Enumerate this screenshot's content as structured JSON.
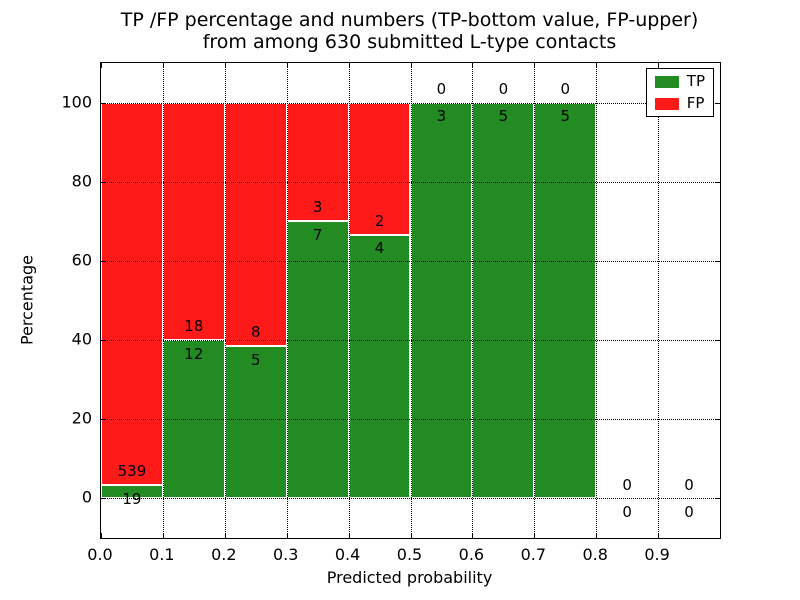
{
  "chart_data": {
    "type": "bar",
    "stacked": true,
    "percent_scale": true,
    "title_lines": [
      "TP /FP percentage and numbers (TP-bottom value, FP-upper)",
      "from among 630 submitted L-type contacts"
    ],
    "total_contacts": 630,
    "xlabel": "Predicted probability",
    "ylabel": "Percentage",
    "bin_edges": [
      0.0,
      0.1,
      0.2,
      0.3,
      0.4,
      0.5,
      0.6,
      0.7,
      0.8,
      0.9,
      1.0
    ],
    "series": [
      {
        "name": "TP",
        "color": "#228b22",
        "counts": [
          19,
          12,
          5,
          7,
          4,
          3,
          5,
          5,
          0,
          0
        ]
      },
      {
        "name": "FP",
        "color": "#ff1a1a",
        "counts": [
          539,
          18,
          8,
          3,
          2,
          0,
          0,
          0,
          0,
          0
        ]
      }
    ],
    "tp_percent": [
      3.4,
      40.0,
      38.5,
      70.0,
      66.7,
      100.0,
      100.0,
      100.0,
      0.0,
      0.0
    ],
    "xticks": [
      "0.0",
      "0.1",
      "0.2",
      "0.3",
      "0.4",
      "0.5",
      "0.6",
      "0.7",
      "0.8",
      "0.9"
    ],
    "yticks": [
      "0",
      "20",
      "40",
      "60",
      "80",
      "100"
    ],
    "xlim": [
      0.0,
      1.0
    ],
    "ylim": [
      -10,
      110
    ],
    "grid": "dotted",
    "legend": {
      "position": "upper right",
      "entries": [
        {
          "label": "TP",
          "color": "#228b22"
        },
        {
          "label": "FP",
          "color": "#ff1a1a"
        }
      ]
    }
  }
}
